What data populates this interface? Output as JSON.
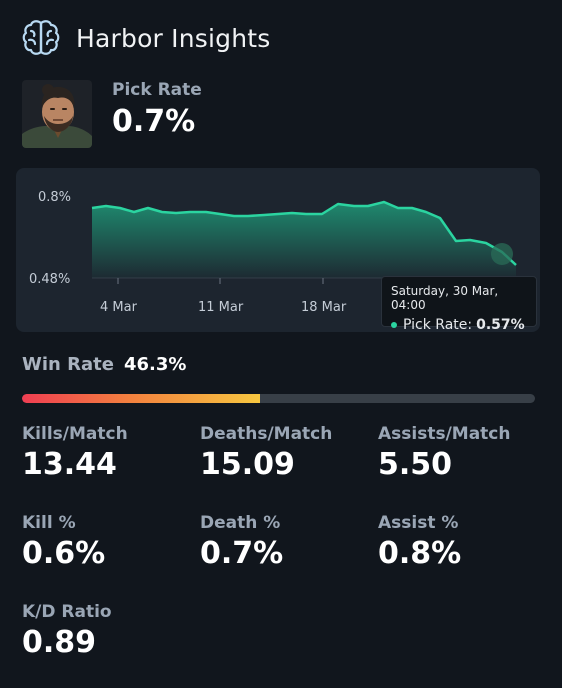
{
  "header": {
    "title": "Harbor Insights",
    "icon": "brain-icon"
  },
  "hero": {
    "pick_label": "Pick Rate",
    "pick_value": "0.7%"
  },
  "chart": {
    "y_ticks": [
      "0.8%",
      "0.48%"
    ],
    "x_ticks": [
      "4 Mar",
      "11 Mar",
      "18 Mar"
    ],
    "line_color": "#2bd4a0"
  },
  "tooltip": {
    "date": "Saturday, 30 Mar, 04:00",
    "series": "Pick Rate:",
    "value": "0.57%"
  },
  "win": {
    "label": "Win Rate",
    "value": "46.3%",
    "fraction": 0.463
  },
  "stats": [
    {
      "label": "Kills/Match",
      "value": "13.44"
    },
    {
      "label": "Deaths/Match",
      "value": "15.09"
    },
    {
      "label": "Assists/Match",
      "value": "5.50"
    },
    {
      "label": "Kill %",
      "value": "0.6%"
    },
    {
      "label": "Death %",
      "value": "0.7%"
    },
    {
      "label": "Assist %",
      "value": "0.8%"
    },
    {
      "label": "K/D Ratio",
      "value": "0.89"
    }
  ]
}
